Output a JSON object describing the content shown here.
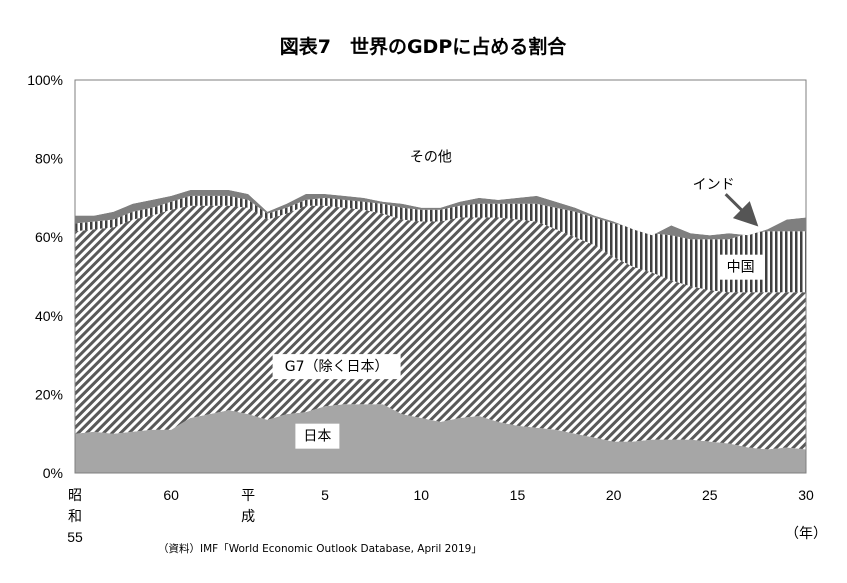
{
  "chart_data": {
    "type": "area",
    "title": "図表7　世界のGDPに占める割合",
    "source": "（資料）IMF「World Economic Outlook Database, April 2019」",
    "x_unit": "（年）",
    "ylim": [
      0,
      100
    ],
    "y_ticks": [
      "0%",
      "20%",
      "40%",
      "60%",
      "80%",
      "100%"
    ],
    "x_tick_labels": [
      {
        "year": 1980,
        "lines": [
          "昭",
          "和",
          "55"
        ]
      },
      {
        "year": 1985,
        "lines": [
          "60"
        ]
      },
      {
        "year": 1989,
        "lines": [
          "平",
          "成"
        ]
      },
      {
        "year": 1993,
        "lines": [
          "5"
        ]
      },
      {
        "year": 1998,
        "lines": [
          "10"
        ]
      },
      {
        "year": 2003,
        "lines": [
          "15"
        ]
      },
      {
        "year": 2008,
        "lines": [
          "20"
        ]
      },
      {
        "year": 2013,
        "lines": [
          "25"
        ]
      },
      {
        "year": 2018,
        "lines": [
          "30"
        ]
      }
    ],
    "x": [
      1980,
      1981,
      1982,
      1983,
      1984,
      1985,
      1986,
      1987,
      1988,
      1989,
      1990,
      1991,
      1992,
      1993,
      1994,
      1995,
      1996,
      1997,
      1998,
      1999,
      2000,
      2001,
      2002,
      2003,
      2004,
      2005,
      2006,
      2007,
      2008,
      2009,
      2010,
      2011,
      2012,
      2013,
      2014,
      2015,
      2016,
      2017,
      2018
    ],
    "stacked_cumulative": true,
    "series": [
      {
        "name": "日本",
        "fill": "#a6a6a6",
        "values": [
          10,
          10.5,
          10,
          10.5,
          11,
          11,
          14,
          15,
          16,
          15,
          13.5,
          15,
          15.5,
          17,
          17.5,
          17.5,
          17.5,
          15,
          14,
          13,
          14,
          14.5,
          13,
          12,
          11.5,
          11,
          10,
          9,
          8,
          8,
          8.5,
          8.5,
          8.5,
          8,
          7.5,
          6.5,
          6,
          6.5,
          6
        ]
      },
      {
        "name": "G7（除く日本）",
        "fill": "hatch-diagonal",
        "values": [
          61.5,
          62,
          62.5,
          64.5,
          65.5,
          67,
          68,
          68,
          68,
          67.5,
          64.5,
          66,
          68,
          68,
          67.5,
          67,
          66,
          64.5,
          64,
          64,
          65,
          65,
          65,
          64.5,
          64,
          62,
          60,
          58,
          55,
          52.5,
          51,
          49,
          47.5,
          46.5,
          46,
          46,
          46,
          46,
          46
        ]
      },
      {
        "name": "中国",
        "fill": "hatch-vertical",
        "values": [
          63.5,
          64,
          64.5,
          66.5,
          67.5,
          69,
          70.5,
          70.5,
          70.5,
          69.5,
          66,
          67.5,
          69.5,
          70,
          69.5,
          69,
          68.5,
          67.5,
          67,
          67,
          68,
          68.5,
          68.5,
          68.5,
          68.5,
          67.5,
          66.5,
          65,
          63.5,
          62.5,
          61,
          60.5,
          59.5,
          59.5,
          59.5,
          61,
          61.5,
          61.5,
          61.5
        ]
      },
      {
        "name": "インド",
        "fill": "#7f7f7f",
        "values": [
          65.5,
          65.5,
          66.5,
          68.5,
          69.5,
          70.5,
          72,
          72,
          72,
          71,
          66.5,
          68.5,
          71,
          71,
          70.5,
          70,
          69,
          68.5,
          67.5,
          67.5,
          69,
          70,
          69.5,
          70,
          70.5,
          69,
          67.5,
          65.5,
          64,
          62,
          60.5,
          63,
          61,
          60.5,
          61,
          60.5,
          62,
          64.5,
          65
        ]
      },
      {
        "name": "その他",
        "fill": "#ffffff",
        "values": [
          100,
          100,
          100,
          100,
          100,
          100,
          100,
          100,
          100,
          100,
          100,
          100,
          100,
          100,
          100,
          100,
          100,
          100,
          100,
          100,
          100,
          100,
          100,
          100,
          100,
          100,
          100,
          100,
          100,
          100,
          100,
          100,
          100,
          100,
          100,
          100,
          100,
          100,
          100
        ]
      }
    ],
    "area_labels": [
      {
        "text": "その他",
        "x": 1998.5,
        "y": 80.5,
        "boxed": false
      },
      {
        "text": "インド",
        "x": 2013.2,
        "y": 73.5,
        "boxed": false,
        "arrow_to": [
          2015.3,
          63.8
        ]
      },
      {
        "text": "中国",
        "x": 2014.6,
        "y": 52.5,
        "boxed": true
      },
      {
        "text": "G7（除く日本）",
        "x": 1993.6,
        "y": 27.2,
        "boxed": true
      },
      {
        "text": "日本",
        "x": 1992.6,
        "y": 9.5,
        "boxed": true
      }
    ],
    "grid": false,
    "legend": "none"
  }
}
